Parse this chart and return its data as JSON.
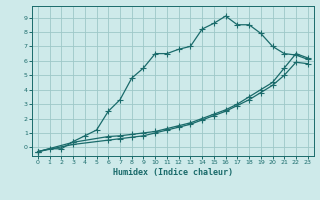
{
  "xlabel": "Humidex (Indice chaleur)",
  "bg_color": "#ceeaea",
  "grid_color": "#9ec8c8",
  "line_color": "#1a6b6b",
  "xlim": [
    -0.5,
    23.5
  ],
  "ylim": [
    -0.6,
    9.8
  ],
  "xticks": [
    0,
    1,
    2,
    3,
    4,
    5,
    6,
    7,
    8,
    9,
    10,
    11,
    12,
    13,
    14,
    15,
    16,
    17,
    18,
    19,
    20,
    21,
    22,
    23
  ],
  "yticks": [
    0,
    1,
    2,
    3,
    4,
    5,
    6,
    7,
    8,
    9
  ],
  "line1_x": [
    0,
    1,
    2,
    3,
    4,
    5,
    6,
    7,
    8,
    9,
    10,
    11,
    12,
    13,
    14,
    15,
    16,
    17,
    18,
    19,
    20,
    21,
    22,
    23
  ],
  "line1_y": [
    -0.3,
    -0.1,
    -0.1,
    0.4,
    0.8,
    1.2,
    2.5,
    3.3,
    4.8,
    5.5,
    6.5,
    6.5,
    6.8,
    7.0,
    8.2,
    8.6,
    9.1,
    8.5,
    8.5,
    7.9,
    7.0,
    6.5,
    6.4,
    6.1
  ],
  "line2_x": [
    0,
    3,
    6,
    7,
    8,
    9,
    10,
    11,
    12,
    13,
    14,
    15,
    16,
    17,
    18,
    19,
    20,
    21,
    22,
    23
  ],
  "line2_y": [
    -0.3,
    0.35,
    0.75,
    0.8,
    0.9,
    1.0,
    1.1,
    1.3,
    1.5,
    1.7,
    2.0,
    2.3,
    2.6,
    3.0,
    3.5,
    4.0,
    4.5,
    5.5,
    6.5,
    6.2
  ],
  "line3_x": [
    0,
    3,
    6,
    7,
    8,
    9,
    10,
    11,
    12,
    13,
    14,
    15,
    16,
    17,
    18,
    19,
    20,
    21,
    22,
    23
  ],
  "line3_y": [
    -0.3,
    0.2,
    0.5,
    0.6,
    0.7,
    0.8,
    1.0,
    1.2,
    1.4,
    1.6,
    1.9,
    2.2,
    2.5,
    2.9,
    3.3,
    3.8,
    4.3,
    5.0,
    5.9,
    5.8
  ],
  "marker": "+",
  "markersize": 4,
  "linewidth": 0.9
}
